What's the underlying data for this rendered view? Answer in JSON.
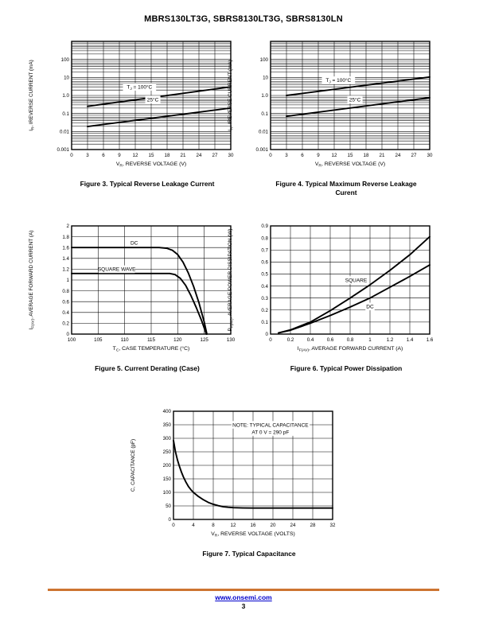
{
  "page": {
    "title": "MBRS130LT3G, SBRS8130LT3G, SBRS8130LN",
    "footer": {
      "url": "www.onsemi.com",
      "page_number": "3",
      "rule_color": "#cd7431",
      "link_color": "#0000cc"
    }
  },
  "chart_data": [
    {
      "type": "line",
      "caption": [
        "Figure 3. Typical Reverse Leakage Current"
      ],
      "x": {
        "label": "V_{R}, REVERSE VOLTAGE (V)",
        "min": 0,
        "max": 30,
        "ticks": [
          [
            0,
            "0"
          ],
          [
            3,
            "3"
          ],
          [
            6,
            "6"
          ],
          [
            9,
            "9"
          ],
          [
            12,
            "12"
          ],
          [
            15,
            "15"
          ],
          [
            18,
            "18"
          ],
          [
            21,
            "21"
          ],
          [
            24,
            "24"
          ],
          [
            27,
            "27"
          ],
          [
            30,
            "30"
          ]
        ]
      },
      "y": {
        "label": "I_{R}, IREVERSE CURRENT (mA)",
        "scale": "log",
        "min": 0.001,
        "max": 1000,
        "ticks": [
          [
            100,
            "100"
          ],
          [
            10,
            "10"
          ],
          [
            1,
            "1.0"
          ],
          [
            0.1,
            "0.1"
          ],
          [
            0.01,
            "0.01"
          ],
          [
            0.001,
            "0.001"
          ]
        ],
        "log_minors": [
          2,
          3,
          4,
          5,
          6,
          8
        ]
      },
      "series": [
        {
          "name": "TJ = 100°C",
          "points": [
            [
              3,
              0.25
            ],
            [
              30,
              3.0
            ]
          ]
        },
        {
          "name": "25°C",
          "points": [
            [
              3,
              0.019
            ],
            [
              30,
              0.2
            ]
          ]
        }
      ],
      "annotations": [
        {
          "text": "T_{J} = 100°C",
          "x": 12.8,
          "y": 3.0
        },
        {
          "text": "25°C",
          "x": 15.3,
          "y": 0.6
        }
      ]
    },
    {
      "type": "line",
      "caption": [
        "Figure 4. Typical Maximum Reverse Leakage",
        "Curent"
      ],
      "x": {
        "label": "V_{R}, REVERSE VOLTAGE (V)",
        "min": 0,
        "max": 30,
        "ticks": [
          [
            0,
            "0"
          ],
          [
            3,
            "3"
          ],
          [
            6,
            "6"
          ],
          [
            9,
            "9"
          ],
          [
            12,
            "12"
          ],
          [
            15,
            "15"
          ],
          [
            18,
            "18"
          ],
          [
            21,
            "21"
          ],
          [
            24,
            "24"
          ],
          [
            27,
            "27"
          ],
          [
            30,
            "30"
          ]
        ]
      },
      "y": {
        "label": "I_{R}, IREVERSE CURRENT (mA)",
        "scale": "log",
        "min": 0.001,
        "max": 1000,
        "ticks": [
          [
            100,
            "100"
          ],
          [
            10,
            "10"
          ],
          [
            1,
            "1.0"
          ],
          [
            0.1,
            "0.1"
          ],
          [
            0.01,
            "0.01"
          ],
          [
            0.001,
            "0.001"
          ]
        ],
        "log_minors": [
          2,
          3,
          4,
          5,
          6,
          8
        ]
      },
      "series": [
        {
          "name": "TJ = 100°C",
          "points": [
            [
              3,
              1.0
            ],
            [
              30,
              10.5
            ]
          ]
        },
        {
          "name": "25°C",
          "points": [
            [
              3,
              0.07
            ],
            [
              30,
              0.75
            ]
          ]
        }
      ],
      "annotations": [
        {
          "text": "T_{J} = 100°C",
          "x": 12.8,
          "y": 7.0
        },
        {
          "text": "25°C",
          "x": 15.9,
          "y": 0.6
        }
      ]
    },
    {
      "type": "line",
      "caption": [
        "Figure 5. Current Derating (Case)"
      ],
      "x": {
        "label": "T_{C}, CASE TEMPERATURE (°C)",
        "min": 100,
        "max": 130,
        "ticks": [
          [
            100,
            "100"
          ],
          [
            105,
            "105"
          ],
          [
            110,
            "110"
          ],
          [
            115,
            "115"
          ],
          [
            120,
            "120"
          ],
          [
            125,
            "125"
          ],
          [
            130,
            "130"
          ]
        ]
      },
      "y": {
        "label": "I_{F(AV)}, AVERAGE FORWARD CURRENT (A)",
        "scale": "linear",
        "min": 0,
        "max": 2,
        "ticks": [
          [
            0,
            "0"
          ],
          [
            0.2,
            "0.2"
          ],
          [
            0.4,
            "0.4"
          ],
          [
            0.6,
            "0.6"
          ],
          [
            0.8,
            "0.8"
          ],
          [
            1,
            "1"
          ],
          [
            1.2,
            "1.2"
          ],
          [
            1.4,
            "1.4"
          ],
          [
            1.6,
            "1.6"
          ],
          [
            1.8,
            "1.8"
          ],
          [
            2,
            "2"
          ]
        ]
      },
      "series": [
        {
          "name": "DC",
          "points": [
            [
              100,
              1.6
            ],
            [
              116.5,
              1.6
            ],
            [
              118,
              1.585
            ],
            [
              119,
              1.55
            ],
            [
              120,
              1.47
            ],
            [
              121,
              1.33
            ],
            [
              122,
              1.13
            ],
            [
              123,
              0.88
            ],
            [
              124,
              0.58
            ],
            [
              125,
              0.22
            ],
            [
              125.5,
              0
            ]
          ]
        },
        {
          "name": "SQUARE WAVE",
          "points": [
            [
              100,
              1.12
            ],
            [
              118.5,
              1.12
            ],
            [
              119.5,
              1.1
            ],
            [
              120.5,
              1.03
            ],
            [
              121.5,
              0.9
            ],
            [
              122.5,
              0.71
            ],
            [
              123.5,
              0.49
            ],
            [
              124.5,
              0.25
            ],
            [
              125.4,
              0
            ]
          ]
        }
      ],
      "annotations": [
        {
          "text": "DC",
          "x": 111.8,
          "y": 1.69
        },
        {
          "text": "SQUARE WAVE",
          "x": 108.5,
          "y": 1.2
        }
      ]
    },
    {
      "type": "line",
      "caption": [
        "Figure 6. Typical Power Dissipation"
      ],
      "x": {
        "label": "I_{F(AV)}, AVERAGE FORWARD CURRENT (A)",
        "min": 0,
        "max": 1.6,
        "ticks": [
          [
            0,
            "0"
          ],
          [
            0.2,
            "0.2"
          ],
          [
            0.4,
            "0.4"
          ],
          [
            0.6,
            "0.6"
          ],
          [
            0.8,
            "0.8"
          ],
          [
            1,
            "1"
          ],
          [
            1.2,
            "1.2"
          ],
          [
            1.4,
            "1.4"
          ],
          [
            1.6,
            "1.6"
          ]
        ]
      },
      "y": {
        "label": "P_{F(AV)}, AVERAGE POWER DISSIPATION (W)",
        "scale": "linear",
        "min": 0,
        "max": 0.9,
        "ticks": [
          [
            0,
            "0"
          ],
          [
            0.1,
            "0.1"
          ],
          [
            0.2,
            "0.2"
          ],
          [
            0.3,
            "0.3"
          ],
          [
            0.4,
            "0.4"
          ],
          [
            0.5,
            "0.5"
          ],
          [
            0.6,
            "0.6"
          ],
          [
            0.7,
            "0.7"
          ],
          [
            0.8,
            "0.8"
          ],
          [
            0.9,
            "0.9"
          ]
        ]
      },
      "series": [
        {
          "name": "SQUARE",
          "points": [
            [
              0.08,
              0.01
            ],
            [
              0.2,
              0.035
            ],
            [
              0.4,
              0.1
            ],
            [
              0.6,
              0.195
            ],
            [
              0.8,
              0.3
            ],
            [
              1.0,
              0.41
            ],
            [
              1.2,
              0.53
            ],
            [
              1.4,
              0.66
            ],
            [
              1.6,
              0.81
            ]
          ]
        },
        {
          "name": "DC",
          "points": [
            [
              0.08,
              0.01
            ],
            [
              0.2,
              0.032
            ],
            [
              0.4,
              0.09
            ],
            [
              0.6,
              0.155
            ],
            [
              0.8,
              0.225
            ],
            [
              1.0,
              0.3
            ],
            [
              1.2,
              0.39
            ],
            [
              1.4,
              0.48
            ],
            [
              1.6,
              0.575
            ]
          ]
        }
      ],
      "annotations": [
        {
          "text": "SQUARE",
          "x": 0.86,
          "y": 0.45
        },
        {
          "text": "DC",
          "x": 1.0,
          "y": 0.23
        }
      ]
    },
    {
      "type": "line",
      "caption": [
        "Figure 7. Typical Capacitance"
      ],
      "x": {
        "label": "V_{R}, REVERSE VOLTAGE (VOLTS)",
        "min": 0,
        "max": 32,
        "ticks": [
          [
            0,
            "0"
          ],
          [
            4,
            "4"
          ],
          [
            8,
            "8"
          ],
          [
            12,
            "12"
          ],
          [
            16,
            "16"
          ],
          [
            20,
            "20"
          ],
          [
            24,
            "24"
          ],
          [
            28,
            "28"
          ],
          [
            32,
            "32"
          ]
        ]
      },
      "y": {
        "label": "C, CAPACITANCE (pF)",
        "scale": "linear",
        "min": 0,
        "max": 400,
        "ticks": [
          [
            0,
            "0"
          ],
          [
            50,
            "50"
          ],
          [
            100,
            "100"
          ],
          [
            150,
            "150"
          ],
          [
            200,
            "200"
          ],
          [
            250,
            "250"
          ],
          [
            300,
            "300"
          ],
          [
            350,
            "350"
          ],
          [
            400,
            "400"
          ]
        ]
      },
      "series": [
        {
          "name": "capacitance",
          "points": [
            [
              0,
              292
            ],
            [
              0.4,
              250
            ],
            [
              0.8,
              220
            ],
            [
              1.2,
              196
            ],
            [
              1.6,
              175
            ],
            [
              2,
              157
            ],
            [
              2.5,
              138
            ],
            [
              3,
              122
            ],
            [
              3.5,
              110
            ],
            [
              4,
              100
            ],
            [
              5,
              85
            ],
            [
              6,
              73
            ],
            [
              7,
              63
            ],
            [
              8,
              56
            ],
            [
              9,
              51
            ],
            [
              10,
              47
            ],
            [
              11,
              45
            ],
            [
              12,
              43.5
            ],
            [
              14,
              42.5
            ],
            [
              16,
              42
            ],
            [
              20,
              42
            ],
            [
              24,
              42
            ],
            [
              28,
              42
            ],
            [
              32,
              42
            ]
          ]
        }
      ],
      "annotations": [
        {
          "text": "NOTE: TYPICAL CAPACITANCE",
          "x": 19.5,
          "y": 350
        },
        {
          "text": "AT 0 V = 290 pF",
          "x": 19.5,
          "y": 323
        }
      ]
    }
  ]
}
